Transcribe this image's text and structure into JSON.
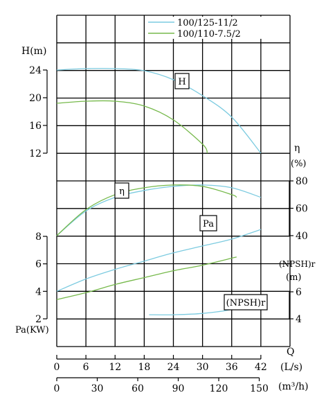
{
  "chart_data": {
    "type": "line",
    "title": "",
    "legend": {
      "placement": "top-right",
      "entries": [
        {
          "name": "100/125-11/2",
          "color": "#7ccbe0"
        },
        {
          "name": "100/110-7.5/2",
          "color": "#76b94b"
        }
      ]
    },
    "x_axes": [
      {
        "name": "Q",
        "unit": "(L/s)",
        "ticks": [
          "0",
          "6",
          "12",
          "18",
          "24",
          "30",
          "36",
          "42"
        ],
        "range": [
          0,
          48
        ]
      },
      {
        "unit": "(m³/h)",
        "ticks": [
          "0",
          "30",
          "60",
          "90",
          "120",
          "150"
        ],
        "range": [
          0,
          172.8
        ]
      }
    ],
    "y_axes": {
      "head": {
        "label": "H(m)",
        "ticks": [
          "12",
          "16",
          "20",
          "24"
        ],
        "range": [
          12,
          26
        ]
      },
      "efficiency": {
        "label": "η",
        "unit": "(%)",
        "ticks": [
          "40",
          "60",
          "80"
        ],
        "range": [
          40,
          80
        ]
      },
      "power": {
        "label": "Pa(KW)",
        "ticks": [
          "2",
          "4",
          "6",
          "8"
        ],
        "range": [
          2,
          8
        ]
      },
      "npsh": {
        "label": "(NPSH)r",
        "unit": "(m)",
        "ticks": [
          "4",
          "6"
        ],
        "range": [
          4,
          6
        ]
      }
    },
    "curve_labels": {
      "head": "H",
      "efficiency": "η",
      "power": "Pa",
      "npsh": "(NPSH)r"
    },
    "series": [
      {
        "name": "100/125-11/2",
        "quantity": "H",
        "x": [
          0,
          6,
          12,
          18,
          24,
          30,
          36,
          42
        ],
        "y": [
          24.0,
          24.2,
          24.2,
          23.9,
          22.6,
          20.3,
          17.2,
          12.0
        ]
      },
      {
        "name": "100/110-7.5/2",
        "quantity": "H",
        "x": [
          0,
          6,
          12,
          18,
          24,
          30,
          31
        ],
        "y": [
          19.2,
          19.5,
          19.5,
          18.8,
          16.8,
          13.3,
          12.0
        ]
      },
      {
        "name": "100/125-11/2",
        "quantity": "η",
        "x": [
          0,
          6,
          12,
          18,
          24,
          30,
          36,
          42
        ],
        "y": [
          40,
          58,
          68,
          73,
          76,
          77,
          75,
          68
        ]
      },
      {
        "name": "100/110-7.5/2",
        "quantity": "η",
        "x": [
          0,
          6,
          12,
          18,
          24,
          30,
          36,
          37
        ],
        "y": [
          40,
          59,
          70,
          75,
          77,
          76,
          70,
          68
        ]
      },
      {
        "name": "100/125-11/2",
        "quantity": "Pa",
        "x": [
          0,
          6,
          12,
          18,
          24,
          30,
          36,
          42
        ],
        "y": [
          4.0,
          4.9,
          5.6,
          6.2,
          6.8,
          7.3,
          7.8,
          8.5
        ]
      },
      {
        "name": "100/110-7.5/2",
        "quantity": "Pa",
        "x": [
          0,
          6,
          12,
          18,
          24,
          30,
          37
        ],
        "y": [
          3.4,
          3.9,
          4.5,
          5.0,
          5.5,
          5.9,
          6.5
        ]
      },
      {
        "name": "100/125-11/2",
        "quantity": "(NPSH)r",
        "x": [
          19,
          24,
          30,
          36,
          42
        ],
        "y": [
          4.3,
          4.3,
          4.4,
          4.7,
          5.4
        ]
      }
    ],
    "grid": true
  }
}
